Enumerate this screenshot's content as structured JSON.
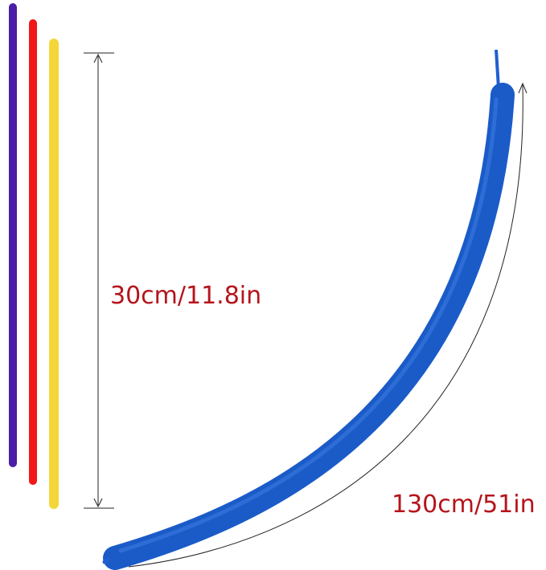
{
  "labels": {
    "uninflated_length": "30cm/11.8in",
    "inflated_length": "130cm/51in"
  }
}
